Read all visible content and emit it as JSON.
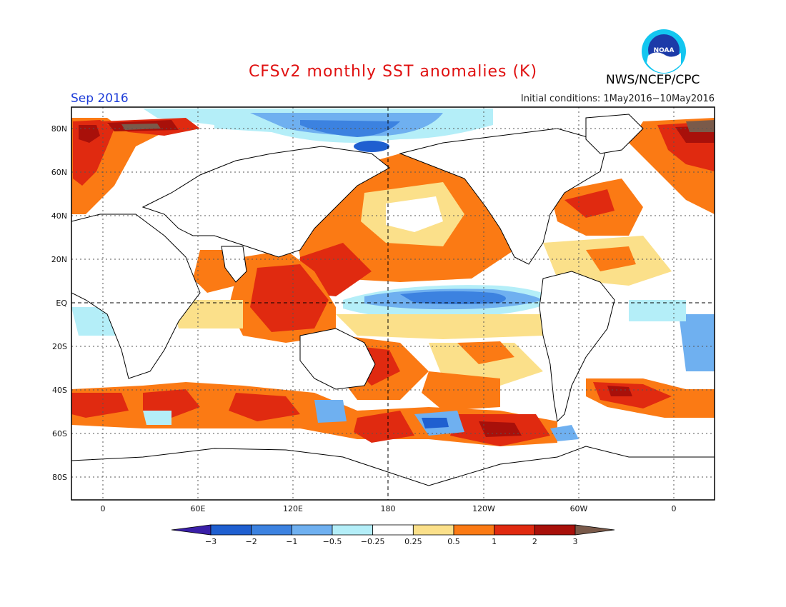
{
  "header": {
    "title": "CFSv2 monthly SST anomalies (K)",
    "valid_month": "Sep 2016",
    "initial_conditions": "Initial conditions: 1May2016−10May2016",
    "agency": "NWS/NCEP/CPC",
    "logo_text": "NOAA"
  },
  "map": {
    "lat_labels": [
      "80N",
      "60N",
      "40N",
      "20N",
      "EQ",
      "20S",
      "40S",
      "60S",
      "80S"
    ],
    "lon_labels": [
      "0",
      "60E",
      "120E",
      "180",
      "120W",
      "60W",
      "0"
    ]
  },
  "colorbar": {
    "labels": [
      "−3",
      "−2",
      "−1",
      "−0.5",
      "−0.25",
      "0.25",
      "0.5",
      "1",
      "2",
      "3"
    ],
    "colors": [
      "#3a1fa8",
      "#1f5fd0",
      "#3c82e0",
      "#6fb0f0",
      "#b4eef8",
      "#ffffff",
      "#fbe08a",
      "#fb7a14",
      "#e02a10",
      "#a8100a",
      "#7a5a4a"
    ]
  }
}
